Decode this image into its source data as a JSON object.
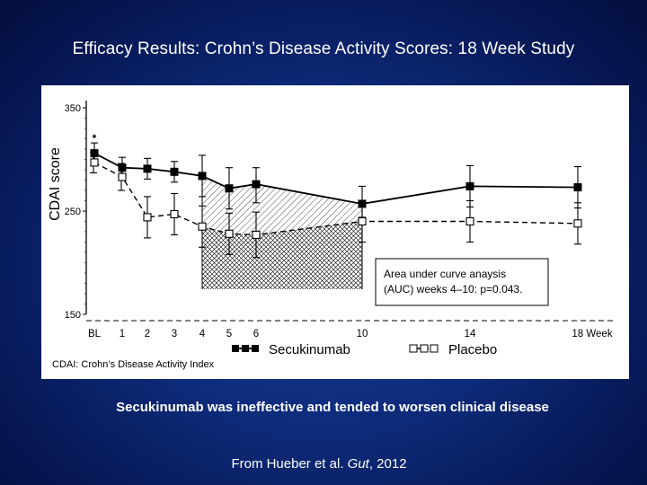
{
  "slide": {
    "title": "Efficacy Results: Crohn’s Disease Activity Scores: 18 Week Study",
    "caption": "Secukinumab was ineffective and tended to worsen clinical disease",
    "citation_prefix": "From Hueber et al. ",
    "citation_journal": "Gut",
    "citation_suffix": ", 2012"
  },
  "chart_data": {
    "type": "line",
    "ylabel": "CDAI score",
    "xlabel": "Week",
    "ylim": [
      150,
      350
    ],
    "yticks": [
      150,
      250,
      350
    ],
    "x": [
      0,
      1,
      2,
      3,
      4,
      5,
      6,
      10,
      14,
      18
    ],
    "xtick_labels": [
      "BL",
      "1",
      "2",
      "3",
      "4",
      "5",
      "6",
      "10",
      "14",
      "18 Week"
    ],
    "series": [
      {
        "name": "Secukinumab",
        "style": "solid",
        "marker": "filled-square",
        "values": [
          306,
          292,
          291,
          288,
          284,
          272,
          276,
          257,
          274,
          273
        ],
        "err_low": [
          296,
          282,
          281,
          278,
          264,
          252,
          258,
          244,
          254,
          253
        ],
        "err_high": [
          316,
          302,
          301,
          298,
          304,
          292,
          292,
          274,
          294,
          293
        ]
      },
      {
        "name": "Placebo",
        "style": "dashed",
        "marker": "open-square",
        "values": [
          297,
          283,
          244,
          247,
          235,
          228,
          227,
          240,
          240,
          238
        ],
        "err_low": [
          287,
          270,
          224,
          227,
          215,
          208,
          205,
          220,
          220,
          218
        ],
        "err_high": [
          307,
          296,
          264,
          267,
          255,
          248,
          249,
          260,
          260,
          258
        ]
      }
    ],
    "significance_marker": {
      "label": "*",
      "week": 0
    },
    "auc_region_weeks": [
      4,
      10
    ],
    "annotation": "Area under curve anaysis (AUC) weeks 4–10: p=0.043.",
    "annotation_lines": [
      "Area under curve anaysis",
      "(AUC) weeks 4–10: p=0.043."
    ],
    "legend": [
      {
        "label": "Secukinumab",
        "series": 0
      },
      {
        "label": "Placebo",
        "series": 1
      }
    ],
    "footnote": "CDAI: Crohn’s Disease Activity Index",
    "colors": {
      "line": "#000000",
      "panel": "#ffffff",
      "background": "#0d2a78"
    }
  }
}
